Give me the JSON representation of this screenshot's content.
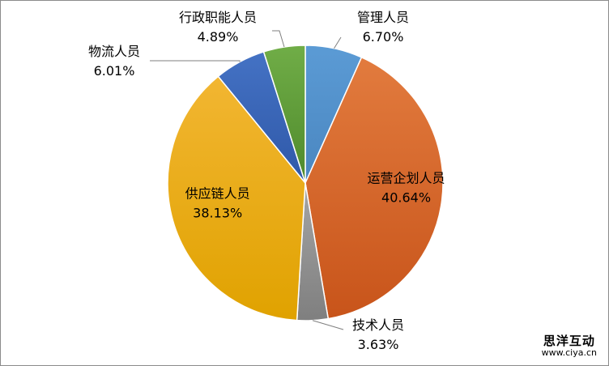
{
  "chart_data": {
    "type": "pie",
    "title": "",
    "slices": [
      {
        "name": "管理人员",
        "value": 6.7,
        "label": "6.70%",
        "color": "#5b9bd5",
        "gradient_dark": "#4a86c0",
        "label_pos": "outside-top-right",
        "leader": true
      },
      {
        "name": "运营企划人员",
        "value": 40.64,
        "label": "40.64%",
        "color": "#e27b3e",
        "gradient_dark": "#c8541a",
        "label_pos": "inside",
        "leader": false
      },
      {
        "name": "技术人员",
        "value": 3.63,
        "label": "3.63%",
        "color": "#a5a5a5",
        "gradient_dark": "#7f7f7f",
        "label_pos": "outside-bottom",
        "leader": true
      },
      {
        "name": "供应链人员",
        "value": 38.13,
        "label": "38.13%",
        "color": "#f2b632",
        "gradient_dark": "#e0a200",
        "label_pos": "inside",
        "leader": false
      },
      {
        "name": "物流人员",
        "value": 6.01,
        "label": "6.01%",
        "color": "#4472c4",
        "gradient_dark": "#2f58a8",
        "label_pos": "outside-left",
        "leader": true
      },
      {
        "name": "行政职能人员",
        "value": 4.89,
        "label": "4.89%",
        "color": "#70ad47",
        "gradient_dark": "#4f8a2c",
        "label_pos": "outside-top",
        "leader": true
      }
    ],
    "start_angle_deg": 0,
    "direction": "clockwise",
    "legend": "none"
  },
  "watermark": {
    "title": "思洋互动",
    "url": "www.ciya.cn"
  }
}
